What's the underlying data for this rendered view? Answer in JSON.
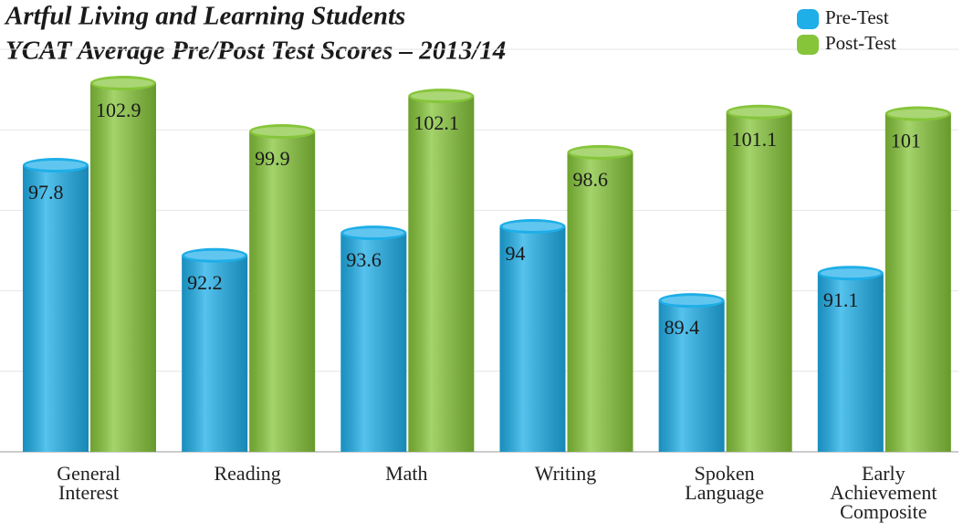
{
  "chart_data": {
    "type": "bar",
    "title": [
      "Artful Living and Learning Students",
      "YCAT Average Pre/Post Test Scores – 2013/14"
    ],
    "categories": [
      "General\nInterest",
      "Reading",
      "Math",
      "Writing",
      "Spoken\nLanguage",
      "Early Achievement\nComposite"
    ],
    "series": [
      {
        "name": "Pre-Test",
        "color": "#1eaee8",
        "values": [
          97.8,
          92.2,
          93.6,
          94,
          89.4,
          91.1
        ]
      },
      {
        "name": "Post-Test",
        "color": "#86c53a",
        "values": [
          102.9,
          99.9,
          102.1,
          98.6,
          101.1,
          101
        ]
      }
    ],
    "ylim": [
      80,
      105
    ],
    "yticks": [
      80,
      85,
      90,
      95,
      100,
      105
    ],
    "grid": true,
    "legend": "top-right"
  }
}
